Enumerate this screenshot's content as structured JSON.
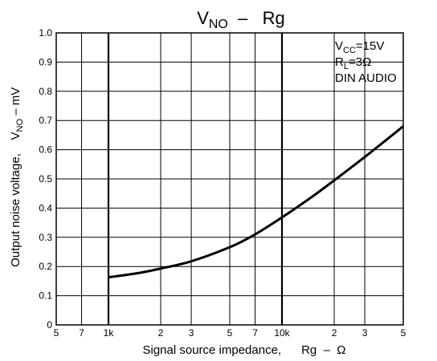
{
  "chart_data": {
    "type": "line",
    "title": {
      "main": "V",
      "sub": "NO",
      "rest": "  –   Rg"
    },
    "xlabel": "Signal source impedance,      Rg  –  Ω",
    "ylabel": {
      "main": "Output noise voltage,",
      "var_main": "V",
      "var_sub": "NO",
      "var_rest": " – mV"
    },
    "x_scale": "log",
    "xlim": [
      500,
      50000
    ],
    "ylim": [
      0,
      1.0
    ],
    "grid": true,
    "x_ticks": [
      {
        "value": 500,
        "label": "5"
      },
      {
        "value": 700,
        "label": "7"
      },
      {
        "value": 1000,
        "label": "1k"
      },
      {
        "value": 2000,
        "label": "2"
      },
      {
        "value": 3000,
        "label": "3"
      },
      {
        "value": 5000,
        "label": "5"
      },
      {
        "value": 7000,
        "label": "7"
      },
      {
        "value": 10000,
        "label": "10k"
      },
      {
        "value": 20000,
        "label": "2"
      },
      {
        "value": 30000,
        "label": "3"
      },
      {
        "value": 50000,
        "label": "5"
      }
    ],
    "x_grid_major": [
      1000,
      10000
    ],
    "y_ticks": [
      {
        "value": 0,
        "label": "0"
      },
      {
        "value": 0.1,
        "label": "0.1"
      },
      {
        "value": 0.2,
        "label": "0.2"
      },
      {
        "value": 0.3,
        "label": "0.3"
      },
      {
        "value": 0.4,
        "label": "0.4"
      },
      {
        "value": 0.5,
        "label": "0.5"
      },
      {
        "value": 0.6,
        "label": "0.6"
      },
      {
        "value": 0.7,
        "label": "0.7"
      },
      {
        "value": 0.8,
        "label": "0.8"
      },
      {
        "value": 0.9,
        "label": "0.9"
      },
      {
        "value": 1.0,
        "label": "1.0"
      }
    ],
    "series": [
      {
        "x": [
          1000,
          1500,
          2000,
          3000,
          5000,
          7000,
          10000,
          15000,
          20000,
          30000,
          50000
        ],
        "y": [
          0.163,
          0.178,
          0.193,
          0.218,
          0.266,
          0.31,
          0.368,
          0.44,
          0.495,
          0.575,
          0.68
        ]
      }
    ],
    "annotation": {
      "position": "top-right",
      "lines": [
        {
          "main": "V",
          "sub": "CC",
          "rest": "=15V"
        },
        {
          "main": "R",
          "sub": "L",
          "rest": "=3Ω"
        },
        {
          "main": "DIN AUDIO",
          "sub": "",
          "rest": ""
        }
      ]
    }
  }
}
